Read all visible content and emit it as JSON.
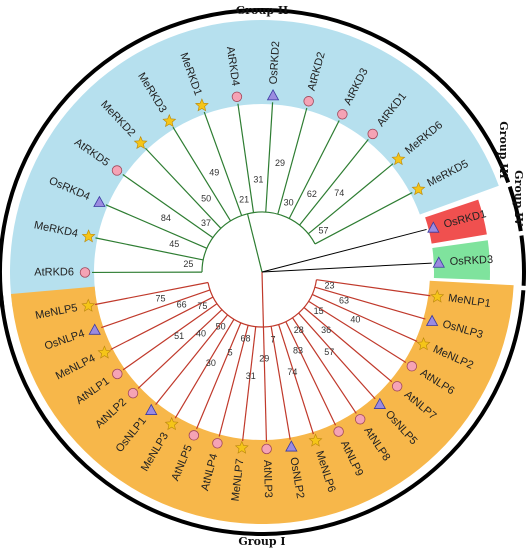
{
  "figure": {
    "groups": {
      "group_1": "Group I",
      "group_2": "Group II",
      "group_3": "Group III",
      "group_4": "Group IV"
    },
    "colors": {
      "group_1_band": "#f7b74a",
      "group_2_band": "#b6e0ee",
      "group_3_band": "#f0504f",
      "group_4_band": "#7fe39d",
      "group_1_branch": "#c0392b",
      "group_2_branch": "#2e7d32",
      "marker_star": "#f5c518",
      "marker_circle": "#f5a3b5",
      "marker_triangle": "#9b8be0"
    },
    "legend_markers": {
      "star": "Cassava (Me)",
      "circle": "Arabidopsis (At)",
      "triangle": "Rice (Os)"
    }
  },
  "tips": {
    "group_2": [
      {
        "label": "AtRKD6",
        "marker": "circle"
      },
      {
        "label": "MeRKD4",
        "marker": "star"
      },
      {
        "label": "OsRKD4",
        "marker": "triangle"
      },
      {
        "label": "AtRKD5",
        "marker": "circle"
      },
      {
        "label": "MeRKD2",
        "marker": "star"
      },
      {
        "label": "MeRKD3",
        "marker": "star"
      },
      {
        "label": "MeRKD1",
        "marker": "star"
      },
      {
        "label": "AtRKD4",
        "marker": "circle"
      },
      {
        "label": "OsRKD2",
        "marker": "triangle"
      },
      {
        "label": "AtRKD2",
        "marker": "circle"
      },
      {
        "label": "AtRKD3",
        "marker": "circle"
      },
      {
        "label": "AtRKD1",
        "marker": "circle"
      },
      {
        "label": "MeRKD6",
        "marker": "star"
      },
      {
        "label": "MeRKD5",
        "marker": "star"
      }
    ],
    "group_3": [
      {
        "label": "OsRKD1",
        "marker": "triangle"
      }
    ],
    "group_4": [
      {
        "label": "OsRKD3",
        "marker": "triangle"
      }
    ],
    "group_1": [
      {
        "label": "MeNLP1",
        "marker": "star"
      },
      {
        "label": "OsNLP3",
        "marker": "triangle"
      },
      {
        "label": "MeNLP2",
        "marker": "star"
      },
      {
        "label": "AtNLP6",
        "marker": "circle"
      },
      {
        "label": "AtNLP7",
        "marker": "circle"
      },
      {
        "label": "OsNLP5",
        "marker": "triangle"
      },
      {
        "label": "AtNLP8",
        "marker": "circle"
      },
      {
        "label": "AtNLP9",
        "marker": "circle"
      },
      {
        "label": "MeNLP6",
        "marker": "star"
      },
      {
        "label": "OsNLP2",
        "marker": "triangle"
      },
      {
        "label": "AtNLP3",
        "marker": "circle"
      },
      {
        "label": "MeNLP7",
        "marker": "star"
      },
      {
        "label": "AtNLP4",
        "marker": "circle"
      },
      {
        "label": "AtNLP5",
        "marker": "circle"
      },
      {
        "label": "MeNLP3",
        "marker": "star"
      },
      {
        "label": "OsNLP1",
        "marker": "triangle"
      },
      {
        "label": "AtNLP2",
        "marker": "circle"
      },
      {
        "label": "AtNLP1",
        "marker": "circle"
      },
      {
        "label": "MeNLP4",
        "marker": "star"
      },
      {
        "label": "OsNLP4",
        "marker": "triangle"
      },
      {
        "label": "MeNLP5",
        "marker": "star"
      }
    ]
  },
  "bootstrap": {
    "group_2": [
      "25",
      "45",
      "84",
      "37",
      "50",
      "49",
      "21",
      "31",
      "29",
      "30",
      "62",
      "74",
      "57"
    ],
    "group_1": [
      "23",
      "63",
      "40",
      "15",
      "36",
      "57",
      "28",
      "83",
      "74",
      "7",
      "29",
      "31",
      "68",
      "5",
      "30",
      "50",
      "40",
      "51",
      "75",
      "66",
      "75"
    ]
  }
}
